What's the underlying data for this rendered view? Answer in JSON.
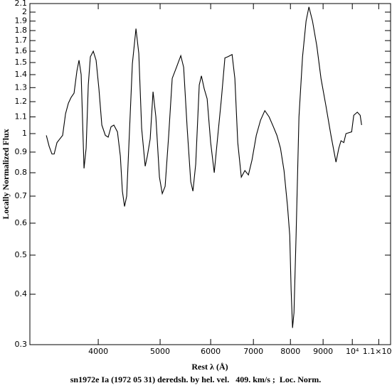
{
  "chart_data": {
    "type": "line",
    "caption": "sn1972e Ia (1972 05 31) deredsh. by hel. vel.   409. km/s ;  Loc. Norm.",
    "x_label": "Rest λ (Å)",
    "y_label": "Locally Normalized Flux",
    "x_scale": "log",
    "y_scale": "log",
    "grid": false,
    "xlim": [
      3126,
      11480
    ],
    "ylim": [
      0.3,
      2.1
    ],
    "xticks": [
      4000,
      5000,
      6000,
      7000,
      8000,
      9000,
      {
        "value": 10000,
        "label": "10⁴"
      },
      {
        "value": 11000,
        "label": "1.1×10⁴"
      }
    ],
    "yticks": [
      0.3,
      0.4,
      0.5,
      0.6,
      0.7,
      0.8,
      0.9,
      1,
      1.1,
      1.2,
      1.3,
      1.4,
      1.5,
      1.6,
      1.7,
      1.8,
      1.9,
      2,
      2.1
    ],
    "x": [
      3317,
      3351,
      3385,
      3412,
      3447,
      3482,
      3518,
      3555,
      3592,
      3628,
      3666,
      3704,
      3732,
      3761,
      3780,
      3800,
      3829,
      3859,
      3888,
      3929,
      3969,
      4010,
      4052,
      4104,
      4146,
      4189,
      4232,
      4287,
      4332,
      4364,
      4398,
      4432,
      4479,
      4524,
      4583,
      4630,
      4678,
      4738,
      4775,
      4824,
      4874,
      4924,
      4988,
      5039,
      5091,
      5157,
      5223,
      5304,
      5387,
      5443,
      5513,
      5584,
      5628,
      5685,
      5758,
      5803,
      5863,
      5924,
      6000,
      6078,
      6157,
      6237,
      6316,
      6382,
      6482,
      6547,
      6616,
      6701,
      6788,
      6875,
      6964,
      7073,
      7183,
      7294,
      7408,
      7522,
      7619,
      7718,
      7817,
      7917,
      7980,
      8020,
      8061,
      8103,
      8165,
      8250,
      8357,
      8464,
      8552,
      8663,
      8798,
      8932,
      9094,
      9259,
      9429,
      9525,
      9600,
      9698,
      9774,
      9976,
      10052,
      10182,
      10288,
      10341
    ],
    "series": [
      {
        "name": "flux",
        "color": "#000000",
        "values": [
          0.99,
          0.93,
          0.89,
          0.89,
          0.95,
          0.97,
          0.99,
          1.12,
          1.19,
          1.23,
          1.26,
          1.43,
          1.52,
          1.4,
          1.08,
          0.82,
          0.92,
          1.32,
          1.55,
          1.6,
          1.52,
          1.29,
          1.05,
          0.99,
          0.98,
          1.04,
          1.05,
          1.01,
          0.88,
          0.72,
          0.66,
          0.7,
          1.03,
          1.49,
          1.82,
          1.58,
          1.03,
          0.83,
          0.88,
          0.97,
          1.27,
          1.1,
          0.78,
          0.71,
          0.74,
          0.99,
          1.37,
          1.46,
          1.56,
          1.46,
          1.03,
          0.76,
          0.72,
          0.84,
          1.32,
          1.39,
          1.29,
          1.22,
          0.95,
          0.8,
          0.99,
          1.22,
          1.54,
          1.55,
          1.57,
          1.37,
          0.95,
          0.78,
          0.81,
          0.79,
          0.86,
          0.99,
          1.08,
          1.14,
          1.1,
          1.04,
          0.99,
          0.92,
          0.81,
          0.66,
          0.56,
          0.41,
          0.33,
          0.36,
          0.56,
          1.1,
          1.55,
          1.9,
          2.06,
          1.9,
          1.65,
          1.37,
          1.17,
          0.99,
          0.85,
          0.92,
          0.96,
          0.95,
          1.0,
          1.01,
          1.11,
          1.13,
          1.11,
          1.05
        ]
      }
    ]
  }
}
